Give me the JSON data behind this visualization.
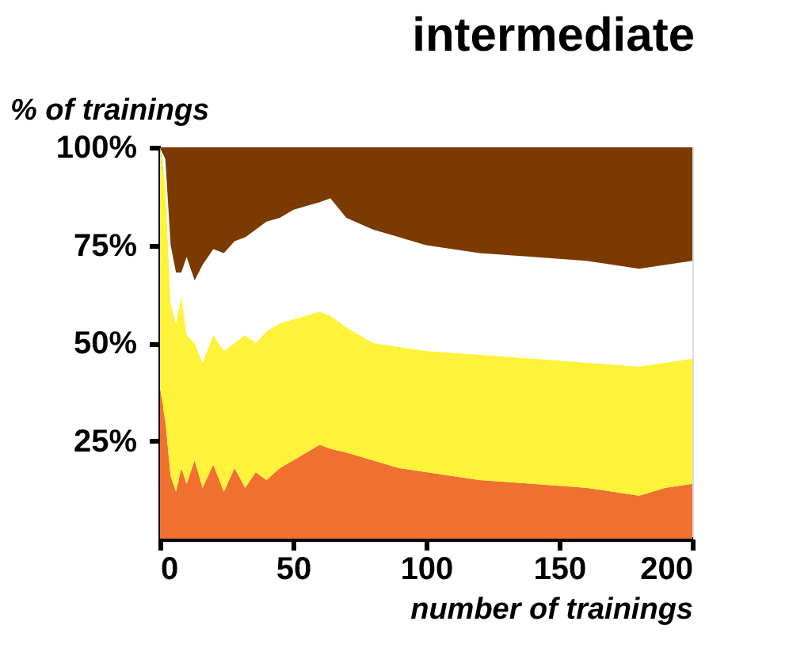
{
  "chart_data": {
    "type": "area",
    "stacked": true,
    "title": "intermediate",
    "xlabel": "number of trainings",
    "ylabel": "% of trainings",
    "x": [
      0,
      2,
      4,
      6,
      8,
      10,
      13,
      16,
      20,
      24,
      28,
      32,
      36,
      40,
      45,
      50,
      55,
      60,
      64,
      70,
      80,
      90,
      100,
      120,
      140,
      160,
      180,
      190,
      200
    ],
    "series": [
      {
        "color": "#f07030",
        "values": [
          38,
          30,
          16,
          12,
          18,
          14,
          20,
          13,
          19,
          12,
          18,
          13,
          17,
          15,
          18,
          20,
          22,
          24,
          23,
          22,
          20,
          18,
          17,
          15,
          14,
          13,
          11,
          13,
          14
        ]
      },
      {
        "color": "#fff23a",
        "values": [
          62,
          60,
          44,
          43,
          44,
          38,
          30,
          32,
          33,
          36,
          32,
          39,
          33,
          38,
          37,
          36,
          35,
          34,
          34,
          32,
          30,
          31,
          31,
          32,
          32,
          32,
          33,
          32,
          32
        ]
      },
      {
        "color": "#ffffff",
        "values": [
          0,
          7,
          15,
          13,
          6,
          20,
          16,
          25,
          22,
          25,
          26,
          25,
          29,
          28,
          27,
          28,
          28,
          28,
          30,
          28,
          29,
          28,
          27,
          26,
          26,
          26,
          25,
          25,
          25
        ]
      },
      {
        "color": "#7a3a00",
        "values": [
          0,
          3,
          25,
          32,
          32,
          28,
          34,
          30,
          26,
          27,
          24,
          23,
          21,
          19,
          18,
          16,
          15,
          14,
          13,
          18,
          21,
          23,
          25,
          27,
          28,
          29,
          31,
          30,
          29
        ]
      }
    ],
    "xlim": [
      0,
      200
    ],
    "xticks": [
      0,
      50,
      100,
      150,
      200
    ],
    "ylim": [
      0,
      100
    ],
    "yticks": [
      {
        "value": 25,
        "label": "25%"
      },
      {
        "value": 50,
        "label": "50%"
      },
      {
        "value": 75,
        "label": "75%"
      },
      {
        "value": 100,
        "label": "100%"
      }
    ],
    "grid": false,
    "legend": false
  }
}
